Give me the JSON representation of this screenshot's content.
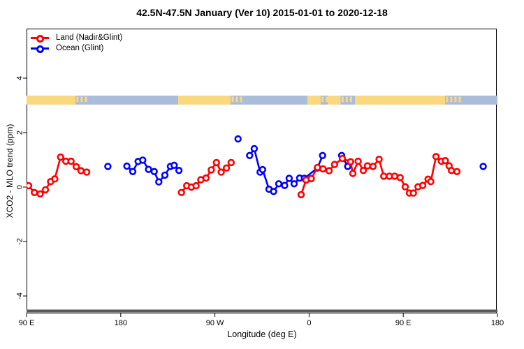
{
  "title": "42.5N-47.5N January (Ver 10)   2015-01-01 to 2020-12-18",
  "legend": {
    "items": [
      {
        "label": "Land (Nadir&Glint)",
        "color": "#ff0000"
      },
      {
        "label": "Ocean (Glint)",
        "color": "#0000ff"
      }
    ]
  },
  "colors": {
    "land_series": "#ff0000",
    "ocean_series": "#0000ff",
    "map_land": "#fad87f",
    "map_ocean": "#a9bddb",
    "baseline_gray": "#595959",
    "axis": "#000000",
    "background": "#ffffff"
  },
  "chart_data": {
    "type": "scatter",
    "title": "42.5N-47.5N January (Ver 10)   2015-01-01 to 2020-12-18",
    "xlabel": "Longitude (deg E)",
    "ylabel": "XCO2 - MLO trend (ppm)",
    "x_axis": {
      "range": [
        90,
        540
      ],
      "ticks": [
        {
          "pos": 90,
          "label": "90 E"
        },
        {
          "pos": 180,
          "label": "180"
        },
        {
          "pos": 270,
          "label": "90 W"
        },
        {
          "pos": 360,
          "label": "0"
        },
        {
          "pos": 450,
          "label": "90 E"
        },
        {
          "pos": 540,
          "label": "180"
        }
      ]
    },
    "y_axis": {
      "range": [
        -4.64,
        5.82
      ],
      "ticks": [
        {
          "pos": -4,
          "label": "-4"
        },
        {
          "pos": -2,
          "label": "-2"
        },
        {
          "pos": 0,
          "label": "0"
        },
        {
          "pos": 2,
          "label": "2"
        },
        {
          "pos": 4,
          "label": "4"
        }
      ],
      "grid": false
    },
    "legend_position": "top-left",
    "series": [
      {
        "name": "Ocean (Glint)",
        "color": "#0000ff",
        "marker": "open-circle",
        "clusters": [
          [
            [
              167.7,
              0.76
            ]
          ],
          [
            [
              185.9,
              0.77
            ],
            [
              191.5,
              0.57
            ],
            [
              196.6,
              0.94
            ],
            [
              201.0,
              0.99
            ],
            [
              206.6,
              0.65
            ],
            [
              212.0,
              0.57
            ],
            [
              216.4,
              0.19
            ],
            [
              222.2,
              0.44
            ],
            [
              227.5,
              0.76
            ],
            [
              231.1,
              0.8
            ],
            [
              235.6,
              0.61
            ]
          ],
          [
            [
              292.1,
              1.77
            ]
          ],
          [
            [
              303.2,
              1.16
            ],
            [
              307.6,
              1.41
            ],
            [
              313.2,
              0.55
            ],
            [
              315.6,
              0.64
            ],
            [
              321.7,
              -0.08
            ],
            [
              326.1,
              -0.16
            ],
            [
              331.0,
              0.12
            ],
            [
              336.6,
              0.06
            ],
            [
              341.0,
              0.32
            ],
            [
              345.7,
              0.12
            ],
            [
              351.0,
              0.33
            ],
            [
              355.5,
              0.32
            ],
            [
              368.0,
              0.7
            ],
            [
              372.9,
              1.16
            ]
          ],
          [
            [
              391.1,
              1.16
            ],
            [
              396.9,
              0.76
            ]
          ],
          [
            [
              526.4,
              0.76
            ]
          ]
        ]
      },
      {
        "name": "Land (Nadir&Glint)",
        "color": "#ff0000",
        "marker": "open-circle",
        "clusters": [
          [
            [
              92.0,
              0.05
            ],
            [
              97.5,
              -0.2
            ],
            [
              103.0,
              -0.25
            ],
            [
              108.0,
              -0.1
            ],
            [
              113.0,
              0.2
            ],
            [
              117.0,
              0.3
            ],
            [
              122.5,
              1.1
            ],
            [
              127.5,
              0.95
            ],
            [
              132.5,
              0.95
            ],
            [
              137.5,
              0.75
            ],
            [
              142.0,
              0.6
            ],
            [
              147.5,
              0.55
            ]
          ],
          [
            [
              238.0,
              -0.2
            ],
            [
              243.0,
              0.05
            ],
            [
              247.5,
              0.0
            ],
            [
              252.0,
              0.05
            ],
            [
              256.5,
              0.27
            ],
            [
              261.5,
              0.33
            ],
            [
              266.5,
              0.63
            ],
            [
              271.5,
              0.9
            ],
            [
              276.0,
              0.55
            ],
            [
              281.0,
              0.7
            ],
            [
              285.5,
              0.9
            ]
          ],
          [
            [
              352.4,
              -0.28
            ],
            [
              357.1,
              0.26
            ],
            [
              362.1,
              0.31
            ],
            [
              368.0,
              0.72
            ],
            [
              373.3,
              0.67
            ],
            [
              379.1,
              0.6
            ],
            [
              384.4,
              0.83
            ],
            [
              391.8,
              1.05
            ],
            [
              399.6,
              0.93
            ],
            [
              401.8,
              0.5
            ],
            [
              406.9,
              0.95
            ],
            [
              411.8,
              0.61
            ],
            [
              415.8,
              0.78
            ],
            [
              421.1,
              0.76
            ],
            [
              426.9,
              1.02
            ],
            [
              431.3,
              0.4
            ],
            [
              436.7,
              0.4
            ],
            [
              441.8,
              0.4
            ],
            [
              447.0,
              0.35
            ],
            [
              451.9,
              0.01
            ],
            [
              455.9,
              -0.22
            ],
            [
              459.7,
              -0.22
            ],
            [
              464.1,
              0.01
            ],
            [
              468.6,
              0.06
            ],
            [
              473.7,
              0.29
            ],
            [
              476.3,
              0.2
            ],
            [
              481.3,
              1.12
            ],
            [
              486.4,
              0.95
            ],
            [
              490.2,
              0.97
            ],
            [
              493.8,
              0.78
            ],
            [
              496.0,
              0.61
            ],
            [
              501.3,
              0.57
            ]
          ]
        ]
      }
    ],
    "map_strip": {
      "description": "coastline band showing land vs ocean along the latitude belt",
      "v_top": 3.36,
      "v_bottom": 3.03,
      "land_color": "#fad87f",
      "ocean_color": "#a9bddb",
      "segments": [
        {
          "from": 90.0,
          "to": 136.7,
          "type": "land"
        },
        {
          "from": 136.7,
          "to": 149.4,
          "type": "mixed"
        },
        {
          "from": 149.4,
          "to": 234.9,
          "type": "ocean"
        },
        {
          "from": 234.9,
          "to": 285.0,
          "type": "land"
        },
        {
          "from": 285.0,
          "to": 298.0,
          "type": "mixed"
        },
        {
          "from": 298.0,
          "to": 358.4,
          "type": "ocean"
        },
        {
          "from": 358.4,
          "to": 371.0,
          "type": "land"
        },
        {
          "from": 371.0,
          "to": 378.0,
          "type": "mixed"
        },
        {
          "from": 378.0,
          "to": 390.0,
          "type": "land"
        },
        {
          "from": 390.0,
          "to": 404.0,
          "type": "mixed"
        },
        {
          "from": 404.0,
          "to": 489.9,
          "type": "land"
        },
        {
          "from": 489.9,
          "to": 505.3,
          "type": "mixed"
        },
        {
          "from": 505.3,
          "to": 540.0,
          "type": "ocean"
        }
      ]
    },
    "baseline_bar": {
      "v": -4.55,
      "color": "#595959",
      "thickness": 4
    }
  }
}
